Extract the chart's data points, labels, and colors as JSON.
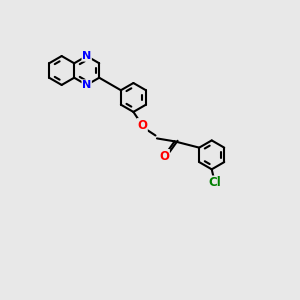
{
  "bg_color": "#e8e8e8",
  "bond_color": "#000000",
  "N_color": "#0000ff",
  "O_color": "#ff0000",
  "Cl_color": "#008000",
  "lw": 1.5,
  "figsize": [
    3.0,
    3.0
  ],
  "dpi": 100,
  "xlim": [
    0,
    10
  ],
  "ylim": [
    0,
    10
  ]
}
